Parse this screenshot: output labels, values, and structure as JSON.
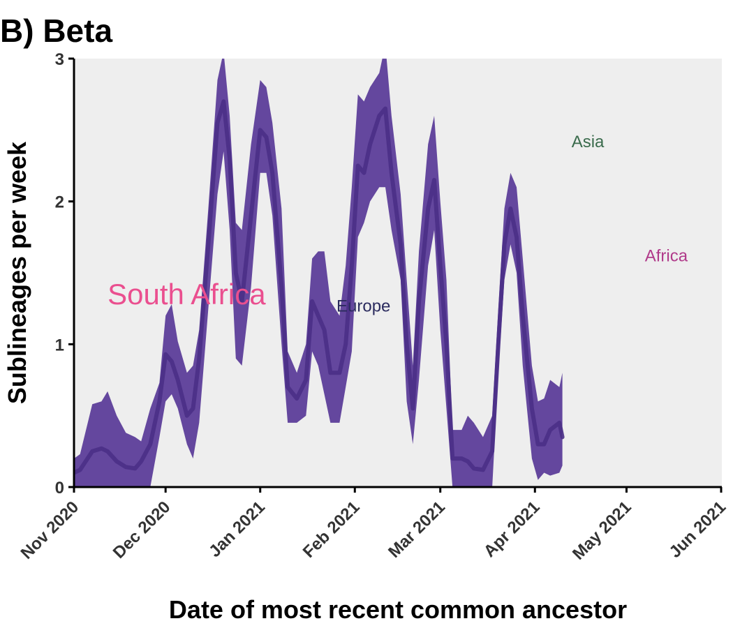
{
  "chart_data": {
    "type": "area",
    "title": "B) Beta",
    "xlabel": "Date of most recent common ancestor",
    "ylabel": "Sublineages per week",
    "xlim": [
      "2020-11-01",
      "2021-06-01"
    ],
    "ylim": [
      0,
      3
    ],
    "x_ticks": [
      {
        "date": "2020-11-01",
        "label": "Nov 2020"
      },
      {
        "date": "2020-12-01",
        "label": "Dec 2020"
      },
      {
        "date": "2021-01-01",
        "label": "Jan 2021"
      },
      {
        "date": "2021-02-01",
        "label": "Feb 2021"
      },
      {
        "date": "2021-03-01",
        "label": "Mar 2021"
      },
      {
        "date": "2021-04-01",
        "label": "Apr 2021"
      },
      {
        "date": "2021-05-01",
        "label": "May 2021"
      },
      {
        "date": "2021-06-01",
        "label": "Jun 2021"
      }
    ],
    "y_ticks": [
      0,
      1,
      2,
      3
    ],
    "grid": false,
    "panel_background": "#eeeeee",
    "series": [
      {
        "color": "#5c3d99",
        "x": [
          "2020-11-01",
          "2020-11-03",
          "2020-11-07",
          "2020-11-10",
          "2020-11-12",
          "2020-11-15",
          "2020-11-18",
          "2020-11-21",
          "2020-11-23",
          "2020-11-26",
          "2020-11-29",
          "2020-12-01",
          "2020-12-03",
          "2020-12-05",
          "2020-12-08",
          "2020-12-10",
          "2020-12-12",
          "2020-12-15",
          "2020-12-18",
          "2020-12-20",
          "2020-12-22",
          "2020-12-24",
          "2020-12-26",
          "2020-12-29",
          "2021-01-01",
          "2021-01-03",
          "2021-01-05",
          "2021-01-08",
          "2021-01-10",
          "2021-01-13",
          "2021-01-16",
          "2021-01-18",
          "2021-01-20",
          "2021-01-22",
          "2021-01-24",
          "2021-01-27",
          "2021-01-29",
          "2021-01-31",
          "2021-02-02",
          "2021-02-04",
          "2021-02-06",
          "2021-02-09",
          "2021-02-11",
          "2021-02-13",
          "2021-02-16",
          "2021-02-18",
          "2021-02-20",
          "2021-02-22",
          "2021-02-25",
          "2021-02-27",
          "2021-03-01",
          "2021-03-03",
          "2021-03-05",
          "2021-03-08",
          "2021-03-10",
          "2021-03-12",
          "2021-03-15",
          "2021-03-18",
          "2021-03-20",
          "2021-03-22",
          "2021-03-24",
          "2021-03-26",
          "2021-03-28",
          "2021-03-31",
          "2021-04-02",
          "2021-04-04",
          "2021-04-06",
          "2021-04-09",
          "2021-04-10"
        ],
        "y": [
          0.1,
          0.12,
          0.25,
          0.27,
          0.25,
          0.18,
          0.14,
          0.13,
          0.18,
          0.3,
          0.6,
          0.93,
          0.88,
          0.75,
          0.5,
          0.55,
          0.9,
          1.7,
          2.55,
          2.7,
          2.3,
          1.5,
          1.3,
          1.9,
          2.5,
          2.45,
          2.2,
          1.4,
          0.7,
          0.62,
          0.75,
          1.3,
          1.2,
          1.1,
          0.8,
          0.8,
          1.0,
          1.55,
          2.25,
          2.2,
          2.4,
          2.6,
          2.65,
          2.2,
          1.7,
          1.0,
          0.55,
          1.3,
          1.95,
          2.15,
          1.55,
          1.0,
          0.2,
          0.2,
          0.18,
          0.13,
          0.12,
          0.25,
          1.0,
          1.7,
          1.95,
          1.75,
          1.2,
          0.55,
          0.3,
          0.3,
          0.4,
          0.45,
          0.35
        ],
        "lower": [
          0,
          0,
          0,
          0,
          0,
          0,
          0,
          0,
          0,
          0,
          0.35,
          0.6,
          0.65,
          0.55,
          0.3,
          0.2,
          0.45,
          1.25,
          2.05,
          2.35,
          1.8,
          0.9,
          0.85,
          1.4,
          2.2,
          2.2,
          1.9,
          1.0,
          0.45,
          0.45,
          0.5,
          0.95,
          0.85,
          0.65,
          0.45,
          0.45,
          0.7,
          0.95,
          1.75,
          1.85,
          2.0,
          2.1,
          2.1,
          1.8,
          1.45,
          0.6,
          0.3,
          0.75,
          1.55,
          1.8,
          1.1,
          0.55,
          0,
          0,
          0,
          0,
          0,
          0,
          0.8,
          1.45,
          1.7,
          1.5,
          0.85,
          0.2,
          0.05,
          0.1,
          0.08,
          0.1,
          0.15
        ],
        "upper": [
          0.2,
          0.23,
          0.58,
          0.6,
          0.67,
          0.5,
          0.38,
          0.35,
          0.32,
          0.55,
          0.73,
          1.2,
          1.28,
          1.02,
          0.8,
          0.85,
          1.1,
          1.95,
          2.85,
          3.05,
          2.6,
          1.85,
          1.8,
          2.4,
          2.85,
          2.8,
          2.55,
          1.95,
          0.95,
          0.8,
          1.0,
          1.6,
          1.65,
          1.65,
          1.3,
          1.2,
          1.55,
          2.1,
          2.75,
          2.7,
          2.8,
          2.9,
          3.1,
          2.6,
          2.05,
          1.45,
          0.85,
          1.65,
          2.4,
          2.6,
          2.0,
          1.45,
          0.4,
          0.4,
          0.5,
          0.45,
          0.35,
          0.5,
          1.25,
          1.95,
          2.2,
          2.1,
          1.6,
          0.85,
          0.6,
          0.62,
          0.75,
          0.7,
          0.8
        ]
      }
    ],
    "annotations": [
      {
        "text": "Asia",
        "x": "2021-04-13",
        "y": 2.38,
        "color": "#3a6b4c",
        "size": "small"
      },
      {
        "text": "Africa",
        "x": "2021-05-07",
        "y": 1.58,
        "color": "#b03a8a",
        "size": "small"
      },
      {
        "text": "South Africa",
        "x": "2020-11-12",
        "y": 1.28,
        "color": "#ea4f8f",
        "size": "large"
      },
      {
        "text": "Europe",
        "x": "2021-01-26",
        "y": 1.23,
        "color": "#2b2b5e",
        "size": "small"
      }
    ]
  }
}
